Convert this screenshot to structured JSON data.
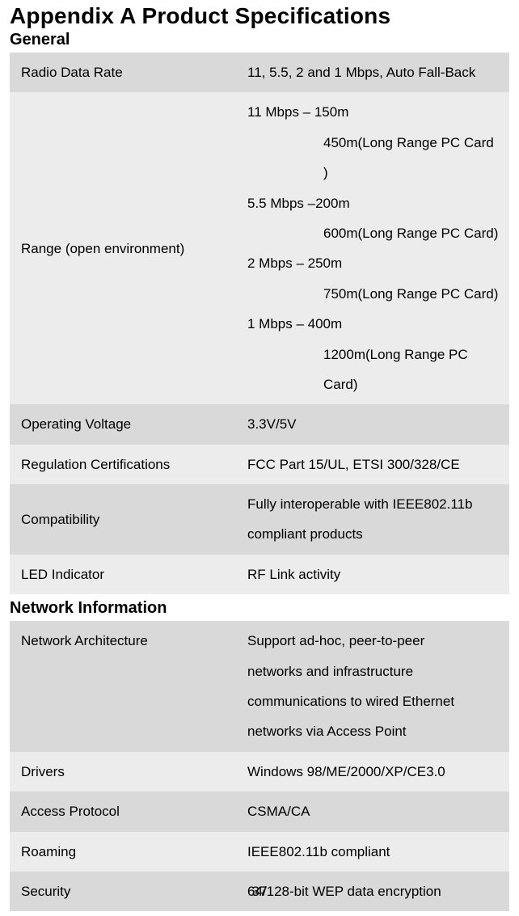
{
  "title": "Appendix A  Product Specifications",
  "page_number": "37",
  "sections": [
    {
      "heading": "General",
      "rows": [
        {
          "label": "Radio Data Rate",
          "value": "11, 5.5, 2 and 1 Mbps, Auto Fall-Back"
        },
        {
          "label": "Range (open environment)",
          "lines": [
            "11 Mbps – 150m",
            {
              "indent": true,
              "text": "450m(Long Range PC Card )"
            },
            "5.5 Mbps –200m",
            {
              "indent": true,
              "text": "600m(Long Range PC Card)"
            },
            "2 Mbps –    250m",
            {
              "indent": true,
              "text": "750m(Long Range PC Card)"
            },
            "1 Mbps –    400m",
            {
              "indent": true,
              "text": "1200m(Long Range PC Card)"
            }
          ]
        },
        {
          "label": "Operating Voltage",
          "value": "3.3V/5V",
          "highlighted": true
        },
        {
          "label": "Regulation Certifications",
          "value": "FCC Part 15/UL, ETSI 300/328/CE"
        },
        {
          "label": "Compatibility",
          "value_lines": [
            "Fully interoperable with IEEE802.11b",
            "compliant products"
          ],
          "highlighted": true
        },
        {
          "label": "LED Indicator",
          "value": "RF Link activity"
        }
      ]
    },
    {
      "heading": "Network Information",
      "rows": [
        {
          "label": "Network Architecture",
          "value_lines": [
            "Support ad-hoc, peer-to-peer",
            "networks and infrastructure",
            "communications to wired Ethernet",
            "networks via Access Point"
          ]
        },
        {
          "label": "Drivers",
          "value": "Windows 98/ME/2000/XP/CE3.0"
        },
        {
          "label": "Access Protocol",
          "value": "CSMA/CA"
        },
        {
          "label": "Roaming",
          "value": "IEEE802.11b compliant"
        },
        {
          "label": "Security",
          "value": "64/128-bit WEP data encryption"
        }
      ]
    }
  ]
}
